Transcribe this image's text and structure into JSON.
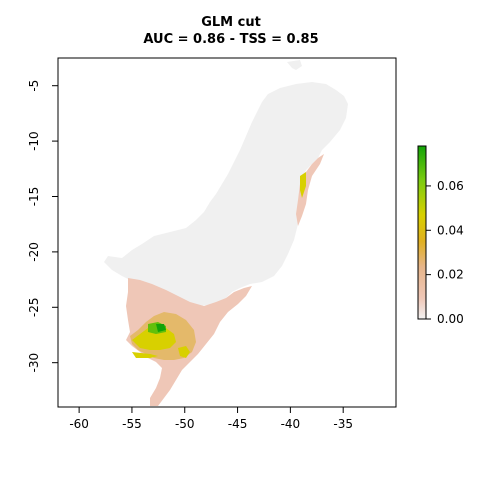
{
  "plot": {
    "title_line1": "GLM cut",
    "title_line2": "AUC = 0.86 - TSS = 0.85",
    "x_ticks": [
      "-60",
      "-55",
      "-50",
      "-45",
      "-40",
      "-35"
    ],
    "y_ticks": [
      "-5",
      "-10",
      "-15",
      "-20",
      "-25",
      "-30"
    ],
    "x_range": [
      -62,
      -30
    ],
    "y_range": [
      -34,
      -2.5
    ]
  },
  "legend": {
    "ticks": [
      "0.06",
      "0.04",
      "0.02",
      "0.00"
    ],
    "scale_range": [
      0,
      0.078
    ],
    "colors": {
      "none": "#f0f0f0",
      "low": "#efc7b7",
      "mid_low": "#e4b96a",
      "mid": "#d8d000",
      "high": "#62c00a",
      "top": "#13a308"
    }
  }
}
